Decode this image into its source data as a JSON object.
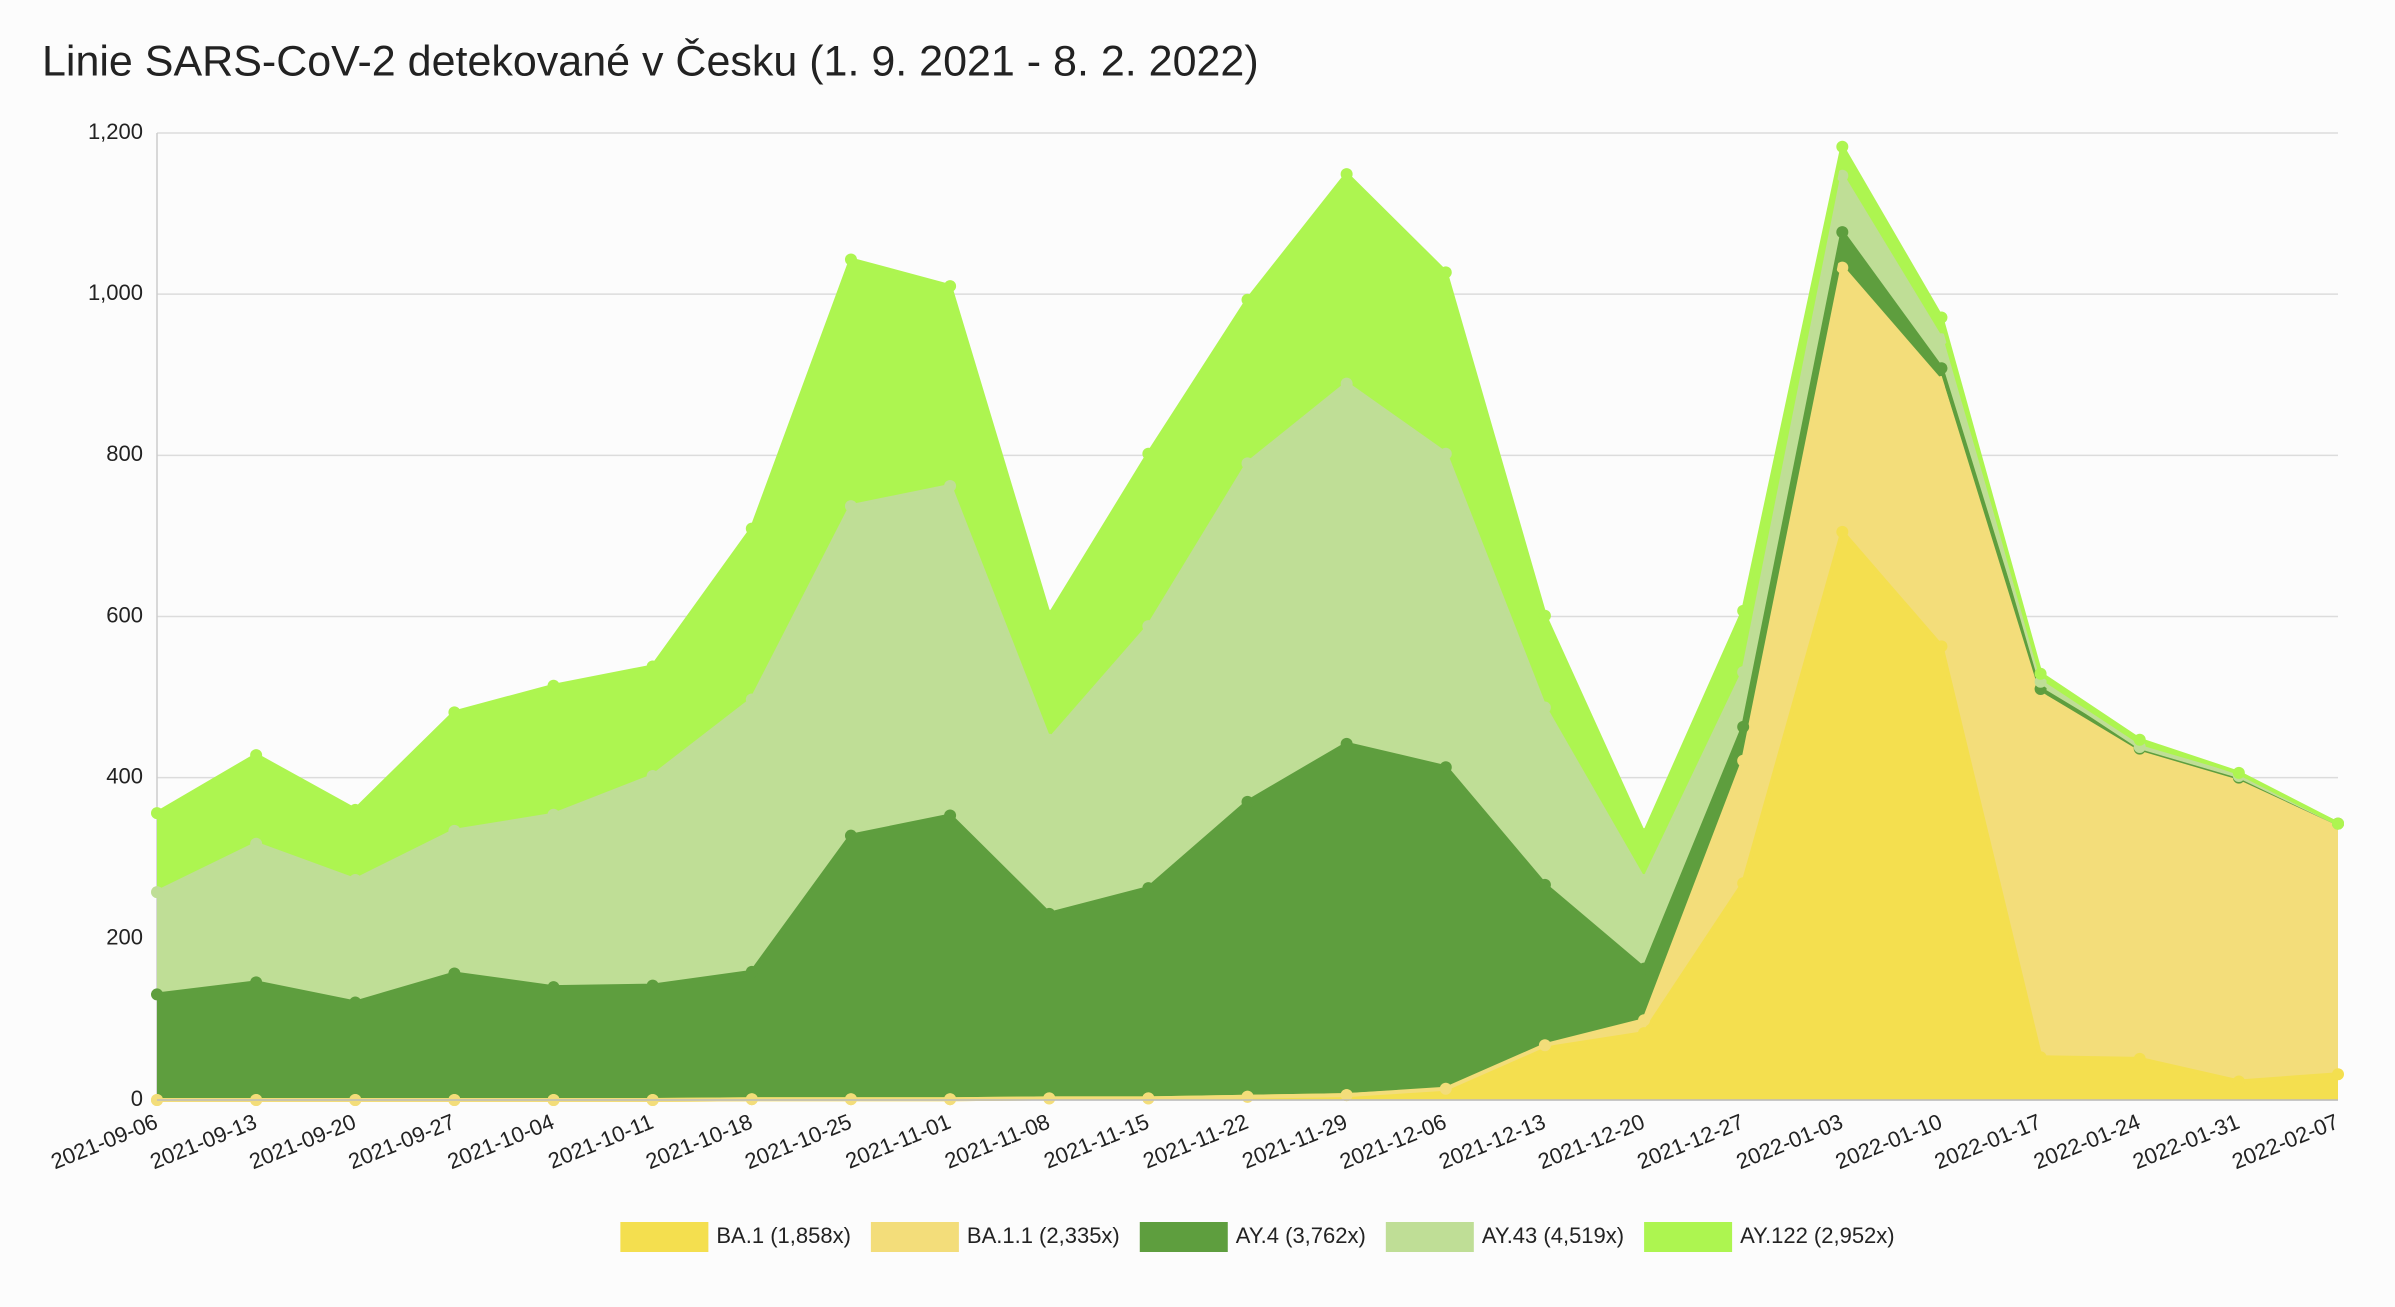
{
  "chart_data": {
    "type": "stacked_area",
    "title": "Linie SARS-CoV-2 detekované v Česku (1. 9. 2021 - 8. 2. 2022)",
    "categories": [
      "2021-09-06",
      "2021-09-13",
      "2021-09-20",
      "2021-09-27",
      "2021-10-04",
      "2021-10-11",
      "2021-10-18",
      "2021-10-25",
      "2021-11-01",
      "2021-11-08",
      "2021-11-15",
      "2021-11-22",
      "2021-11-29",
      "2021-12-06",
      "2021-12-13",
      "2021-12-20",
      "2021-12-27",
      "2022-01-03",
      "2022-01-10",
      "2022-01-17",
      "2022-01-24",
      "2022-01-31",
      "2022-02-07"
    ],
    "series": [
      {
        "name": "BA.1 (1,858x)",
        "color": "#f4df4f",
        "values": [
          0,
          0,
          0,
          0,
          0,
          0,
          1,
          1,
          1,
          2,
          2,
          4,
          6,
          13,
          64,
          83,
          269,
          705,
          563,
          53,
          51,
          23,
          32
        ]
      },
      {
        "name": "BA.1.1 (2,335x)",
        "color": "#f3dd7a",
        "values": [
          0,
          0,
          0,
          0,
          0,
          0,
          0,
          0,
          0,
          0,
          0,
          0,
          0,
          1,
          4,
          16,
          152,
          328,
          328,
          451,
          381,
          375,
          311
        ]
      },
      {
        "name": "AY.4 (3,762x)",
        "color": "#5e9e3e",
        "values": [
          131,
          146,
          121,
          157,
          140,
          142,
          158,
          327,
          352,
          229,
          261,
          366,
          436,
          399,
          199,
          64,
          42,
          44,
          17,
          6,
          4,
          2,
          0
        ]
      },
      {
        "name": "AY.43 (4,519x)",
        "color": "#bfde96",
        "values": [
          127,
          172,
          152,
          177,
          214,
          260,
          338,
          409,
          409,
          216,
          325,
          420,
          447,
          389,
          220,
          110,
          68,
          70,
          36,
          9,
          2,
          2,
          0
        ]
      },
      {
        "name": "AY.122 (2,952x)",
        "color": "#adf550",
        "values": [
          98,
          110,
          87,
          147,
          160,
          136,
          212,
          306,
          248,
          154,
          214,
          203,
          260,
          225,
          114,
          57,
          76,
          36,
          27,
          10,
          9,
          4,
          0
        ]
      }
    ],
    "ylim": [
      0,
      1200
    ],
    "yticks": [
      0,
      200,
      400,
      600,
      800,
      {
        "value": 1000,
        "label": "1,000"
      },
      {
        "value": 1200,
        "label": "1,200"
      }
    ],
    "grid": true
  }
}
